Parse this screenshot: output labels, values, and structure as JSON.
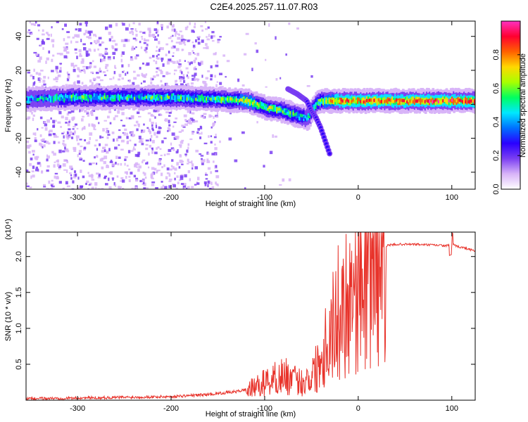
{
  "title": "C2E4.2025.257.11.07.R03",
  "chart_data": [
    {
      "type": "heatmap",
      "xlabel": "Height of straight line (km)",
      "ylabel": "Frequency (Hz)",
      "xlim": [
        -355,
        125
      ],
      "ylim": [
        -50,
        49
      ],
      "xticks": [
        -300,
        -200,
        -100,
        0,
        100
      ],
      "yticks": [
        -40,
        -20,
        0,
        20,
        40
      ],
      "colorbar": {
        "label": "Normalized spectral amplitude",
        "range": [
          0.0,
          1.0
        ],
        "ticks": [
          "0.0",
          "0.2",
          "0.4",
          "0.6",
          "0.8"
        ],
        "tick_values": [
          0.0,
          0.2,
          0.4,
          0.6,
          0.8
        ],
        "colors": [
          "#ffffff",
          "#d8b4f8",
          "#7b3ff2",
          "#2a00ff",
          "#0070ff",
          "#00e8ff",
          "#00ff60",
          "#a8ff00",
          "#ffd800",
          "#ff6000",
          "#ff0030",
          "#ff30c0"
        ]
      },
      "ridge": {
        "x": [
          -355,
          -300,
          -250,
          -200,
          -150,
          -120,
          -100,
          -80,
          -70,
          -55,
          -45,
          -40,
          -30,
          -20,
          0,
          30,
          60,
          100,
          125
        ],
        "y": [
          3,
          4,
          4,
          4,
          3,
          2,
          -2,
          -4,
          -6,
          -8,
          1,
          2,
          2,
          2,
          2,
          2,
          2,
          2,
          2
        ],
        "amplitude": [
          0.35,
          0.45,
          0.45,
          0.45,
          0.5,
          0.6,
          0.55,
          0.5,
          0.45,
          0.4,
          0.5,
          0.55,
          0.7,
          0.8,
          0.75,
          0.75,
          0.8,
          0.8,
          0.75
        ]
      },
      "branch": {
        "x": [
          -75,
          -65,
          -55,
          -50,
          -45,
          -40,
          -35,
          -30
        ],
        "y": [
          9,
          6,
          2,
          -4,
          -8,
          -14,
          -22,
          -30
        ]
      }
    },
    {
      "type": "line",
      "xlabel": "Height of straight line (km)",
      "ylabel": "SNR (10 * v/v)",
      "yscale_note": "(x10⁴)",
      "xlim": [
        -355,
        125
      ],
      "ylim": [
        0,
        23400
      ],
      "xticks": [
        -300,
        -200,
        -100,
        0,
        100
      ],
      "yticks": [
        5000,
        10000,
        15000,
        20000
      ],
      "ytick_labels": [
        "0.5",
        "1.0",
        "1.5",
        "2.0"
      ],
      "color": "#e8322a",
      "series": [
        {
          "x": [
            -355,
            -300,
            -250,
            -200,
            -160,
            -130,
            -110,
            -100,
            -90,
            -80,
            -70,
            -60,
            -50,
            -45,
            -40,
            -35,
            -30,
            -25,
            -20,
            -15,
            -10,
            -5,
            0,
            10,
            20,
            30,
            40,
            60,
            80,
            95,
            100,
            105,
            110,
            125
          ],
          "y": [
            200,
            300,
            400,
            500,
            800,
            1200,
            1800,
            2500,
            3000,
            3500,
            2800,
            2500,
            3500,
            4500,
            6000,
            8000,
            9500,
            11000,
            12500,
            13500,
            15000,
            16500,
            17500,
            19500,
            21000,
            21500,
            21700,
            21700,
            21600,
            21500,
            21800,
            21400,
            21300,
            20800
          ]
        }
      ]
    }
  ]
}
